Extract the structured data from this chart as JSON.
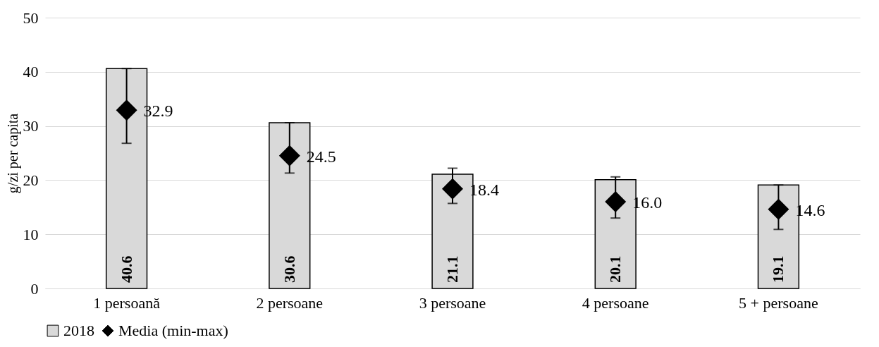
{
  "chart_data": {
    "type": "bar",
    "categories": [
      "1 persoană",
      "2 persoane",
      "3 persoane",
      "4 persoane",
      "5 + persoane"
    ],
    "ylabel": "g/zi per capita",
    "ylim": [
      0,
      50
    ],
    "yticks": [
      0,
      10,
      20,
      30,
      40,
      50
    ],
    "grid": "y",
    "legend": "bottom",
    "data_labels": true,
    "marker": "diamond",
    "series": [
      {
        "name": "2018",
        "color": "#d9d9d9",
        "values": [
          40.6,
          30.6,
          21.1,
          20.1,
          19.1
        ]
      },
      {
        "name": "Media (min-max)",
        "type": "scatter",
        "color": "#000000",
        "values": [
          32.9,
          24.5,
          18.4,
          16.0,
          14.6
        ],
        "value_labels": [
          "32.9",
          "24.5",
          "18.4",
          "16.0",
          "14.6"
        ],
        "errors": [
          [
            26.8,
            40.6
          ],
          [
            21.3,
            30.6
          ],
          [
            15.7,
            22.2
          ],
          [
            13.0,
            20.6
          ],
          [
            10.9,
            19.1
          ]
        ]
      }
    ]
  }
}
